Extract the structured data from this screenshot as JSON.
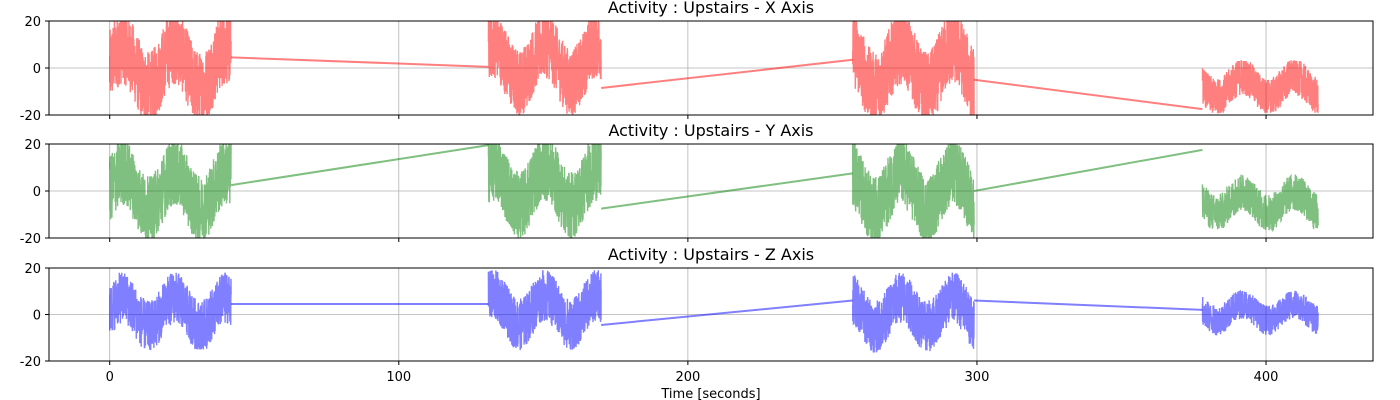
{
  "chart_data": [
    {
      "type": "line",
      "title": "Activity : Upstairs - X Axis",
      "xlim": [
        -21,
        437
      ],
      "ylim": [
        -20,
        20
      ],
      "yticks": [
        -20,
        0,
        20
      ],
      "xticks": [
        0,
        100,
        200,
        300,
        400
      ],
      "grid": true,
      "color": "#ff0000",
      "alpha": 0.5,
      "segments": [
        {
          "start": 0,
          "end": 42,
          "noise_center": 0,
          "noise_amp": 20,
          "min": -20,
          "max": 20
        },
        {
          "start": 131,
          "end": 170,
          "noise_center": 2,
          "noise_amp": 18,
          "min": -20,
          "max": 20
        },
        {
          "start": 257,
          "end": 299,
          "noise_center": 0,
          "noise_amp": 20,
          "min": -20,
          "max": 20
        },
        {
          "start": 378,
          "end": 418,
          "noise_center": -8,
          "noise_amp": 10,
          "min": -19,
          "max": 3
        }
      ],
      "connectors": [
        {
          "x": [
            42,
            131
          ],
          "y": [
            4.5,
            0.5
          ]
        },
        {
          "x": [
            170,
            257
          ],
          "y": [
            -8.5,
            3.5
          ]
        },
        {
          "x": [
            299,
            378
          ],
          "y": [
            -5,
            -17.5
          ]
        }
      ]
    },
    {
      "type": "line",
      "title": "Activity : Upstairs - Y Axis",
      "xlim": [
        -21,
        437
      ],
      "ylim": [
        -20,
        20
      ],
      "yticks": [
        -20,
        0,
        20
      ],
      "xticks": [
        0,
        100,
        200,
        300,
        400
      ],
      "grid": true,
      "color": "#008000",
      "alpha": 0.5,
      "segments": [
        {
          "start": 0,
          "end": 42,
          "noise_center": 0,
          "noise_amp": 18,
          "min": -20,
          "max": 20
        },
        {
          "start": 131,
          "end": 170,
          "noise_center": 2,
          "noise_amp": 18,
          "min": -20,
          "max": 20
        },
        {
          "start": 257,
          "end": 299,
          "noise_center": 0,
          "noise_amp": 18,
          "min": -20,
          "max": 20
        },
        {
          "start": 378,
          "end": 418,
          "noise_center": -5,
          "noise_amp": 10,
          "min": -19,
          "max": 7
        }
      ],
      "connectors": [
        {
          "x": [
            42,
            131
          ],
          "y": [
            2.5,
            19.5
          ]
        },
        {
          "x": [
            170,
            257
          ],
          "y": [
            -7.5,
            7.5
          ]
        },
        {
          "x": [
            299,
            378
          ],
          "y": [
            0,
            17.5
          ]
        }
      ]
    },
    {
      "type": "line",
      "title": "Activity : Upstairs - Z Axis",
      "xlim": [
        -21,
        437
      ],
      "ylim": [
        -20,
        20
      ],
      "yticks": [
        -20,
        0,
        20
      ],
      "xticks": [
        0,
        100,
        200,
        300,
        400
      ],
      "xticklabels": [
        "0",
        "100",
        "200",
        "300",
        "400"
      ],
      "xlabel": "Time [seconds]",
      "grid": true,
      "color": "#0000ff",
      "alpha": 0.5,
      "segments": [
        {
          "start": 0,
          "end": 42,
          "noise_center": 1,
          "noise_amp": 14,
          "min": -15,
          "max": 18
        },
        {
          "start": 131,
          "end": 170,
          "noise_center": 2,
          "noise_amp": 14,
          "min": -17,
          "max": 19
        },
        {
          "start": 257,
          "end": 299,
          "noise_center": 1,
          "noise_amp": 14,
          "min": -17,
          "max": 18
        },
        {
          "start": 378,
          "end": 418,
          "noise_center": 1,
          "noise_amp": 8,
          "min": -16,
          "max": 12
        }
      ],
      "connectors": [
        {
          "x": [
            42,
            131
          ],
          "y": [
            4.5,
            4.5
          ]
        },
        {
          "x": [
            170,
            257
          ],
          "y": [
            -4.5,
            6
          ]
        },
        {
          "x": [
            299,
            378
          ],
          "y": [
            6,
            2
          ]
        }
      ]
    }
  ]
}
